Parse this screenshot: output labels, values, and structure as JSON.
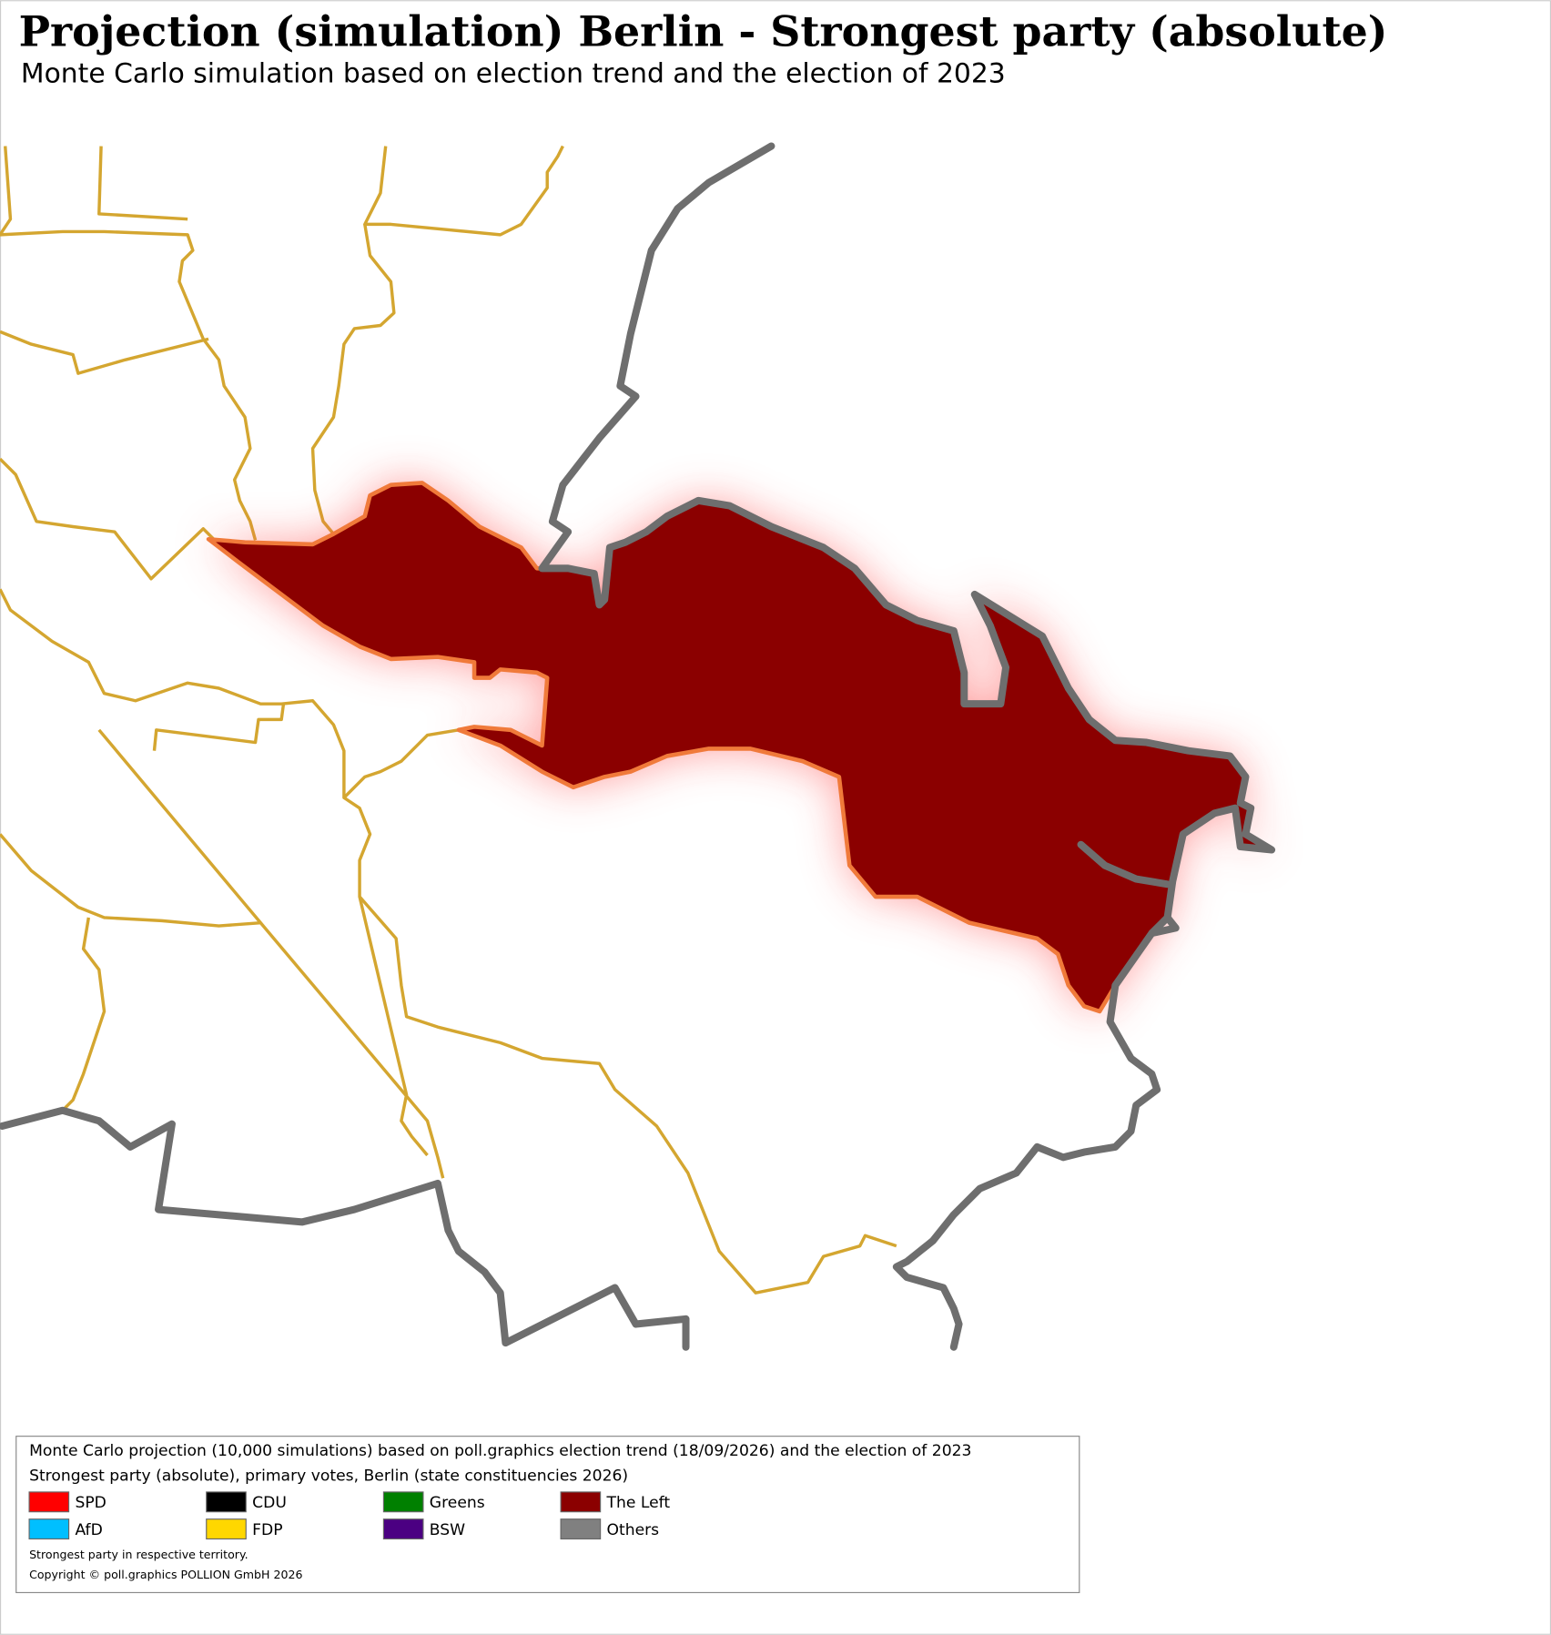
{
  "title": "Projection (simulation) Berlin - Strongest party (absolute)",
  "subtitle": "Monte Carlo simulation based on election trend and the election of 2023",
  "legend": {
    "lines": [
      "Monte Carlo projection (10,000 simulations) based on poll.graphics election trend (18/09/2026) and the election of 2023",
      "Strongest party (absolute), primary votes, Berlin (state constituencies 2026)"
    ],
    "entries": [
      {
        "name": "SPD",
        "color": "#ff0000"
      },
      {
        "name": "CDU",
        "color": "#000000"
      },
      {
        "name": "Greens",
        "color": "#008000"
      },
      {
        "name": "The Left",
        "color": "#8b0000"
      },
      {
        "name": "AfD",
        "color": "#00bfff"
      },
      {
        "name": "FDP",
        "color": "#ffd700"
      },
      {
        "name": "BSW",
        "color": "#4b0082"
      },
      {
        "name": "Others",
        "color": "#808080"
      }
    ],
    "notes": [
      "Strongest party in respective territory.",
      "Copyright © poll.graphics POLLION GmbH 2026"
    ]
  }
}
